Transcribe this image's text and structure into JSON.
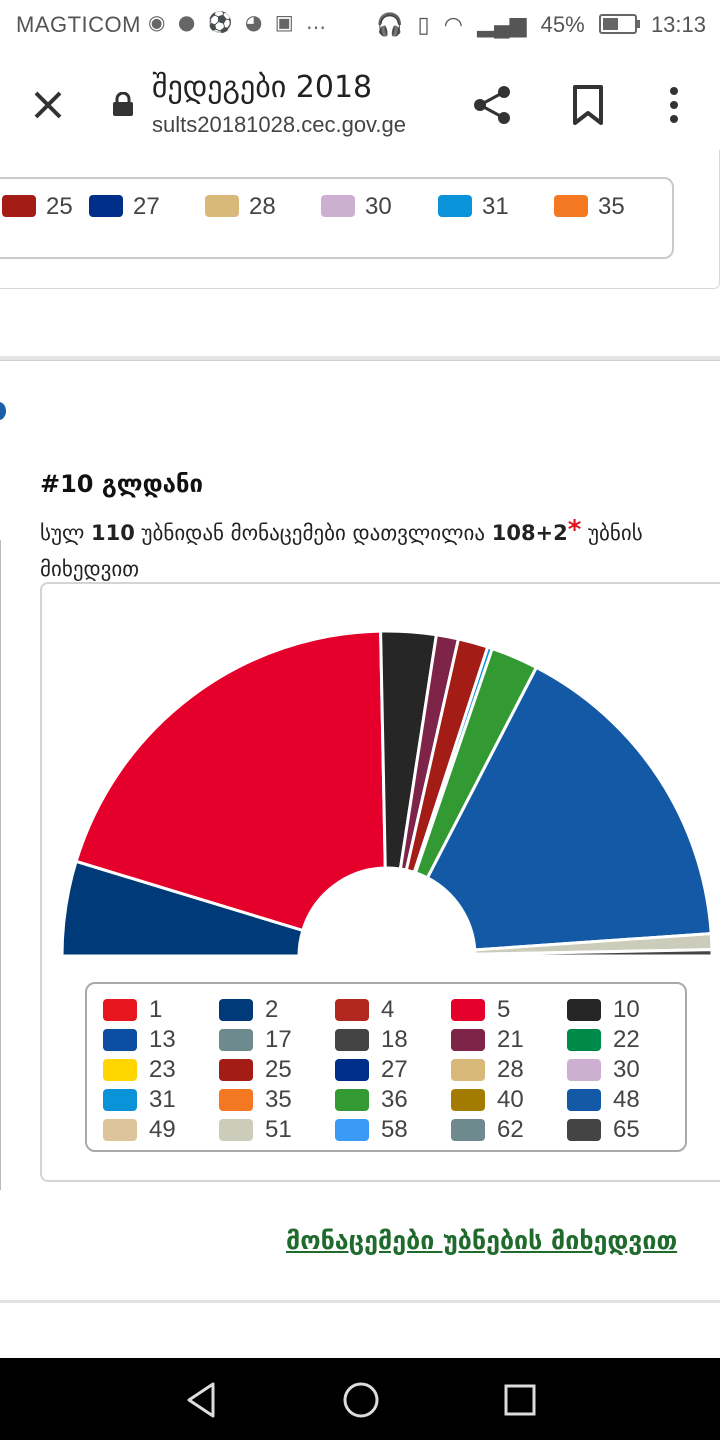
{
  "status_bar": {
    "carrier": "MAGTICOM",
    "battery": "45%",
    "time": "13:13",
    "icons": [
      "chrome-icon",
      "message-icon",
      "soccer-icon",
      "messenger-icon",
      "facebook-icon",
      "more-icon"
    ]
  },
  "browser": {
    "title": "შედეგები 2018",
    "url": "sults20181028.cec.gov.ge"
  },
  "top_legend": [
    {
      "label": "25",
      "color": "#a31c15"
    },
    {
      "label": "27",
      "color": "#002f8a"
    },
    {
      "label": "28",
      "color": "#d8b97a"
    },
    {
      "label": "30",
      "color": "#cdb0d1"
    },
    {
      "label": "31",
      "color": "#0a93d8"
    },
    {
      "label": "35",
      "color": "#f47721"
    }
  ],
  "district": {
    "title": "#10 გლდანი",
    "desc_prefix": "სულ ",
    "total": "110",
    "desc_mid": " უბნიდან მონაცემები დათვლილია ",
    "counted": "108+2",
    "star": "*",
    "desc_suffix": " უბნის მიხედვით"
  },
  "chart_data": {
    "type": "pie",
    "subtype": "half-donut",
    "slices": [
      {
        "label": "2",
        "value": 6.0,
        "color": "#003a78"
      },
      {
        "label": "5",
        "value": 25.5,
        "color": "#e4002b"
      },
      {
        "label": "10",
        "value": 3.5,
        "color": "#262626"
      },
      {
        "label": "21",
        "value": 1.4,
        "color": "#7d2448"
      },
      {
        "label": "25",
        "value": 1.9,
        "color": "#a31c15"
      },
      {
        "label": "31",
        "value": 0.3,
        "color": "#0a93d8"
      },
      {
        "label": "36",
        "value": 3.0,
        "color": "#339933"
      },
      {
        "label": "48",
        "value": 20.8,
        "color": "#1359a6"
      },
      {
        "label": "51",
        "value": 1.0,
        "color": "#ccccbb"
      },
      {
        "label": "65",
        "value": 0.4,
        "color": "#444444"
      }
    ],
    "legend": [
      {
        "label": "1",
        "color": "#e8161e"
      },
      {
        "label": "2",
        "color": "#003a78"
      },
      {
        "label": "4",
        "color": "#b22720"
      },
      {
        "label": "5",
        "color": "#e4002b"
      },
      {
        "label": "10",
        "color": "#262626"
      },
      {
        "label": "13",
        "color": "#0b4ea2"
      },
      {
        "label": "17",
        "color": "#6e8a8f"
      },
      {
        "label": "18",
        "color": "#444444"
      },
      {
        "label": "21",
        "color": "#7d2448"
      },
      {
        "label": "22",
        "color": "#008a4a"
      },
      {
        "label": "23",
        "color": "#ffd500"
      },
      {
        "label": "25",
        "color": "#a31c15"
      },
      {
        "label": "27",
        "color": "#002f8a"
      },
      {
        "label": "28",
        "color": "#d8b97a"
      },
      {
        "label": "30",
        "color": "#cdb0d1"
      },
      {
        "label": "31",
        "color": "#0a93d8"
      },
      {
        "label": "35",
        "color": "#f47721"
      },
      {
        "label": "36",
        "color": "#339933"
      },
      {
        "label": "40",
        "color": "#a37b00"
      },
      {
        "label": "48",
        "color": "#1359a6"
      },
      {
        "label": "49",
        "color": "#dcc399"
      },
      {
        "label": "51",
        "color": "#ccccbb"
      },
      {
        "label": "58",
        "color": "#3a9bf7"
      },
      {
        "label": "62",
        "color": "#6e8a8f"
      },
      {
        "label": "65",
        "color": "#444444"
      }
    ]
  },
  "link": {
    "label": "მონაცემები უბნების მიხედვით"
  }
}
